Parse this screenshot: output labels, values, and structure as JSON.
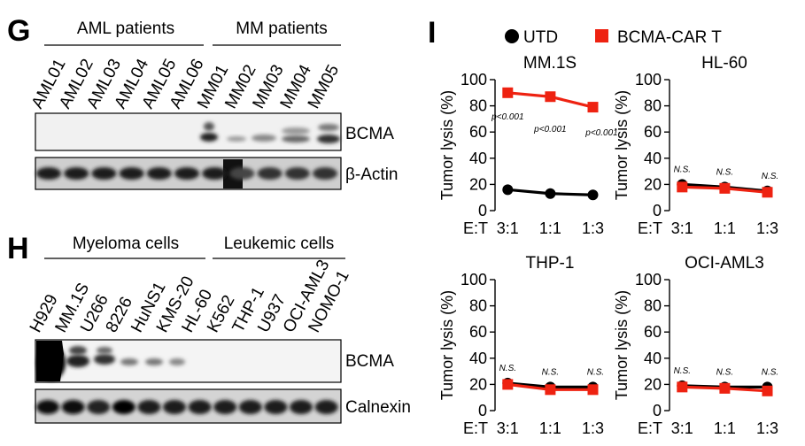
{
  "panel_G": {
    "letter": "G",
    "groups": [
      {
        "name": "aml-group",
        "label": "AML patients"
      },
      {
        "name": "mm-group",
        "label": "MM patients"
      }
    ],
    "lanes": [
      "AML01",
      "AML02",
      "AML03",
      "AML04",
      "AML05",
      "AML06",
      "MM01",
      "MM02",
      "MM03",
      "MM04",
      "MM05"
    ],
    "blots": [
      {
        "label": "BCMA"
      },
      {
        "label": "β-Actin"
      }
    ]
  },
  "panel_H": {
    "letter": "H",
    "groups": [
      {
        "name": "myeloma-group",
        "label": "Myeloma cells"
      },
      {
        "name": "leukemic-group",
        "label": "Leukemic cells"
      }
    ],
    "lanes": [
      "H929",
      "MM.1S",
      "U266",
      "8226",
      "HuNS1",
      "KMS-20",
      "HL-60",
      "K562",
      "THP-1",
      "U937",
      "OCI-AML3",
      "NOMO-1"
    ],
    "blots": [
      {
        "label": "BCMA"
      },
      {
        "label": "Calnexin"
      }
    ]
  },
  "panel_I": {
    "letter": "I",
    "legend": [
      {
        "label": "UTD",
        "color": "#000000",
        "marker": "circle"
      },
      {
        "label": "BCMA-CAR T",
        "color": "#ee2211",
        "marker": "square"
      }
    ]
  },
  "chart_data": [
    {
      "type": "line",
      "title": "MM.1S",
      "ylabel": "Tumor lysis (%)",
      "xlabel": "E:T",
      "categories": [
        "3:1",
        "1:1",
        "1:3"
      ],
      "ylim": [
        0,
        100
      ],
      "yticks": [
        0,
        20,
        40,
        60,
        80,
        100
      ],
      "series": [
        {
          "name": "UTD",
          "values": [
            16,
            13,
            12
          ]
        },
        {
          "name": "BCMA-CAR T",
          "values": [
            90,
            87,
            79
          ]
        }
      ],
      "annotations": [
        "p<0.001",
        "p<0.001",
        "p<0.001"
      ]
    },
    {
      "type": "line",
      "title": "HL-60",
      "ylabel": "Tumor lysis (%)",
      "xlabel": "E:T",
      "categories": [
        "3:1",
        "1:1",
        "1:3"
      ],
      "ylim": [
        0,
        100
      ],
      "yticks": [
        0,
        20,
        40,
        60,
        80,
        100
      ],
      "series": [
        {
          "name": "UTD",
          "values": [
            20,
            18,
            15
          ]
        },
        {
          "name": "BCMA-CAR T",
          "values": [
            18,
            17,
            14
          ]
        }
      ],
      "annotations": [
        "N.S.",
        "N.S.",
        "N.S."
      ]
    },
    {
      "type": "line",
      "title": "THP-1",
      "ylabel": "Tumor lysis (%)",
      "xlabel": "E:T",
      "categories": [
        "3:1",
        "1:1",
        "1:3"
      ],
      "ylim": [
        0,
        100
      ],
      "yticks": [
        0,
        20,
        40,
        60,
        80,
        100
      ],
      "series": [
        {
          "name": "UTD",
          "values": [
            21,
            18,
            18
          ]
        },
        {
          "name": "BCMA-CAR T",
          "values": [
            20,
            16,
            16
          ]
        }
      ],
      "annotations": [
        "N.S.",
        "N.S.",
        "N.S."
      ]
    },
    {
      "type": "line",
      "title": "OCI-AML3",
      "ylabel": "Tumor lysis (%)",
      "xlabel": "E:T",
      "categories": [
        "3:1",
        "1:1",
        "1:3"
      ],
      "ylim": [
        0,
        100
      ],
      "yticks": [
        0,
        20,
        40,
        60,
        80,
        100
      ],
      "series": [
        {
          "name": "UTD",
          "values": [
            19,
            18,
            18
          ]
        },
        {
          "name": "BCMA-CAR T",
          "values": [
            18,
            17,
            15
          ]
        }
      ],
      "annotations": [
        "N.S.",
        "N.S.",
        "N.S."
      ]
    }
  ]
}
